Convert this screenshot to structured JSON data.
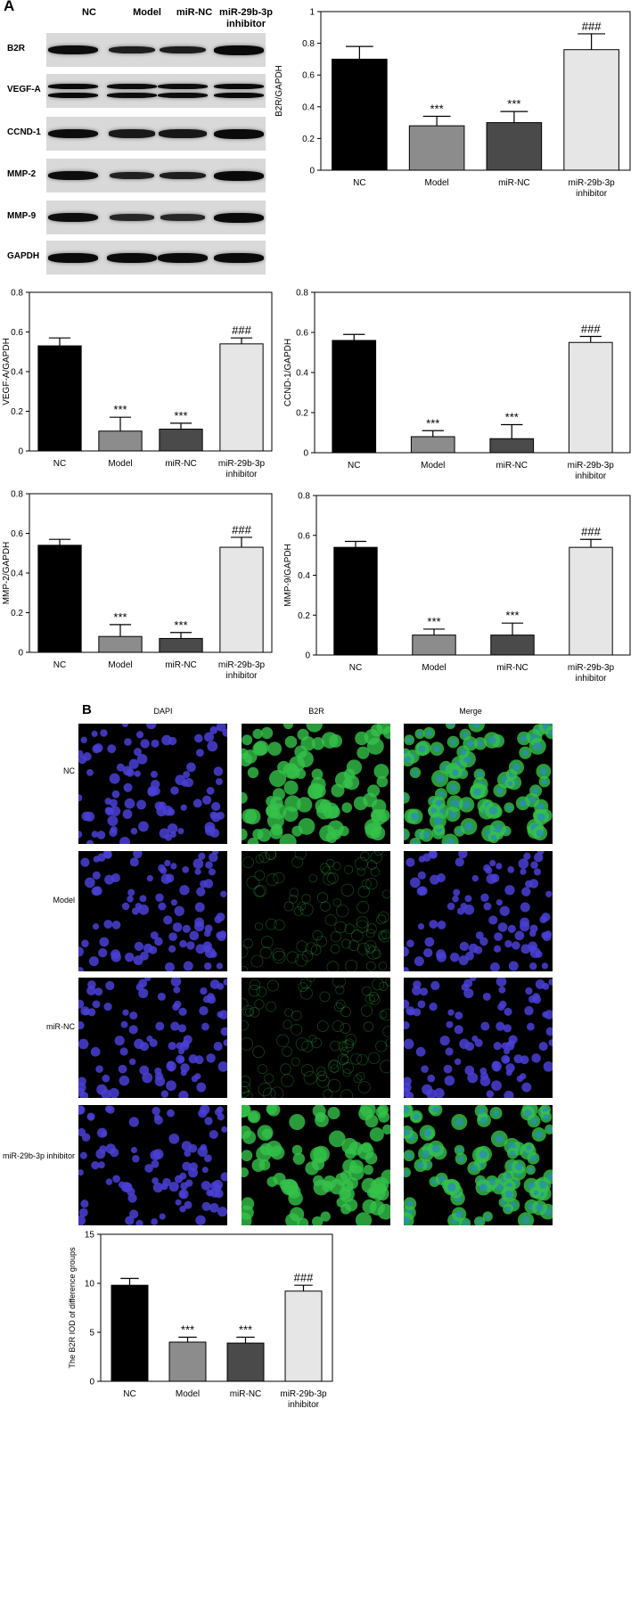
{
  "panel_a_label": "A",
  "panel_b_label": "B",
  "western_blot": {
    "groups": [
      "NC",
      "Model",
      "miR-NC",
      "miR-29b-3p\ninhibitor"
    ],
    "rows": [
      {
        "name": "B2R",
        "intensity": [
          0.95,
          0.6,
          0.62,
          1.0
        ]
      },
      {
        "name": "VEGF-A",
        "intensity": [
          1.0,
          0.95,
          0.95,
          1.0
        ]
      },
      {
        "name": "CCND-1",
        "intensity": [
          0.95,
          0.7,
          0.75,
          1.0
        ]
      },
      {
        "name": "MMP-2",
        "intensity": [
          0.95,
          0.55,
          0.6,
          1.0
        ]
      },
      {
        "name": "MMP-9",
        "intensity": [
          0.95,
          0.45,
          0.4,
          1.0
        ]
      },
      {
        "name": "GAPDH",
        "intensity": [
          1.0,
          1.0,
          1.0,
          1.0
        ]
      }
    ]
  },
  "chart_data": [
    {
      "type": "bar",
      "ylabel": "B2R/GAPDH",
      "categories": [
        "NC",
        "Model",
        "miR-NC",
        "miR-29b-3p\ninhibitor"
      ],
      "values": [
        0.7,
        0.28,
        0.3,
        0.76
      ],
      "errors": [
        0.08,
        0.06,
        0.07,
        0.1
      ],
      "annotations": [
        "",
        "***",
        "***",
        "###"
      ],
      "ylim": [
        0,
        1.0
      ],
      "yticks": [
        0,
        0.2,
        0.4,
        0.6,
        0.8,
        1.0
      ]
    },
    {
      "type": "bar",
      "ylabel": "VEGF-A/GAPDH",
      "categories": [
        "NC",
        "Model",
        "miR-NC",
        "miR-29b-3p\ninhibitor"
      ],
      "values": [
        0.53,
        0.1,
        0.11,
        0.54
      ],
      "errors": [
        0.04,
        0.07,
        0.03,
        0.03
      ],
      "annotations": [
        "",
        "***",
        "***",
        "###"
      ],
      "ylim": [
        0,
        0.8
      ],
      "yticks": [
        0,
        0.2,
        0.4,
        0.6,
        0.8
      ]
    },
    {
      "type": "bar",
      "ylabel": "CCND-1/GAPDH",
      "categories": [
        "NC",
        "Model",
        "miR-NC",
        "miR-29b-3p\ninhibitor"
      ],
      "values": [
        0.56,
        0.08,
        0.07,
        0.55
      ],
      "errors": [
        0.03,
        0.03,
        0.07,
        0.03
      ],
      "annotations": [
        "",
        "***",
        "***",
        "###"
      ],
      "ylim": [
        0,
        0.8
      ],
      "yticks": [
        0,
        0.2,
        0.4,
        0.6,
        0.8
      ]
    },
    {
      "type": "bar",
      "ylabel": "MMP-2/GAPDH",
      "categories": [
        "NC",
        "Model",
        "miR-NC",
        "miR-29b-3p\ninhibitor"
      ],
      "values": [
        0.54,
        0.08,
        0.07,
        0.53
      ],
      "errors": [
        0.03,
        0.06,
        0.03,
        0.05
      ],
      "annotations": [
        "",
        "***",
        "***",
        "###"
      ],
      "ylim": [
        0,
        0.8
      ],
      "yticks": [
        0,
        0.2,
        0.4,
        0.6,
        0.8
      ]
    },
    {
      "type": "bar",
      "ylabel": "MMP-9/GAPDH",
      "categories": [
        "NC",
        "Model",
        "miR-NC",
        "miR-29b-3p\ninhibitor"
      ],
      "values": [
        0.54,
        0.1,
        0.1,
        0.54
      ],
      "errors": [
        0.03,
        0.03,
        0.06,
        0.04
      ],
      "annotations": [
        "",
        "***",
        "***",
        "###"
      ],
      "ylim": [
        0,
        0.8
      ],
      "yticks": [
        0,
        0.2,
        0.4,
        0.6,
        0.8
      ]
    },
    {
      "type": "bar",
      "ylabel": "The B2R IOD of difference groups",
      "categories": [
        "NC",
        "Model",
        "miR-NC",
        "miR-29b-3p\ninhibitor"
      ],
      "values": [
        9.8,
        4.0,
        3.9,
        9.2
      ],
      "errors": [
        0.7,
        0.5,
        0.6,
        0.6
      ],
      "annotations": [
        "",
        "***",
        "***",
        "###"
      ],
      "ylim": [
        0,
        15
      ],
      "yticks": [
        0,
        5,
        10,
        15
      ]
    }
  ],
  "bar_colors": [
    "#000000",
    "#8c8c8c",
    "#4a4a4a",
    "#e6e6e6"
  ],
  "fluorescence": {
    "columns": [
      "DAPI",
      "B2R",
      "Merge"
    ],
    "rows": [
      "NC",
      "Model",
      "miR-NC",
      "miR-29b-3p inhibitor"
    ],
    "channel_colors": {
      "DAPI": "#4a3fd6",
      "B2R": "#35c24a"
    },
    "b2r_signal": [
      1.0,
      0.15,
      0.15,
      1.0
    ]
  }
}
